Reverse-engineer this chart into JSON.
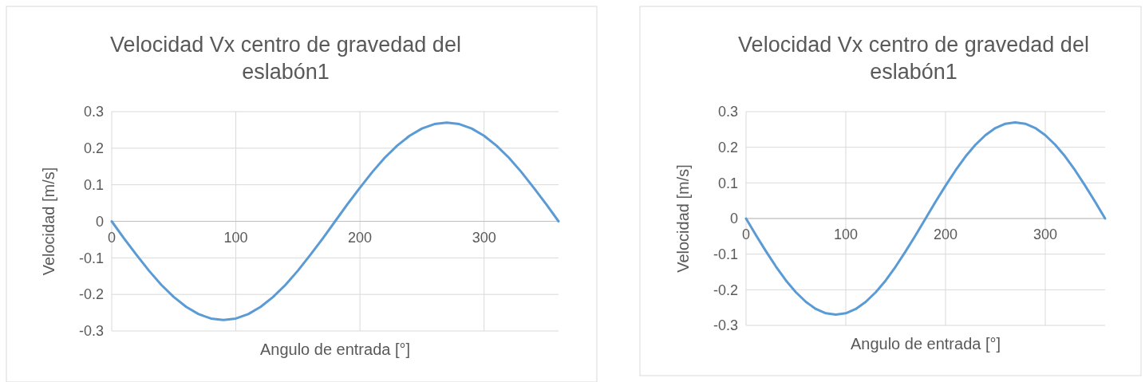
{
  "chart_data": [
    {
      "type": "line",
      "title": "Velocidad Vx centro de gravedad del eslabón1",
      "xlabel": "Angulo de entrada [°]",
      "ylabel": "Velocidad [m/s]",
      "x": [
        0,
        10,
        20,
        30,
        40,
        50,
        60,
        70,
        80,
        90,
        100,
        110,
        120,
        130,
        140,
        150,
        160,
        170,
        180,
        190,
        200,
        210,
        220,
        230,
        240,
        250,
        260,
        270,
        280,
        290,
        300,
        310,
        320,
        330,
        340,
        350,
        360
      ],
      "series": [
        {
          "color": "#5b9bd5",
          "values": [
            0,
            -0.047,
            -0.092,
            -0.135,
            -0.174,
            -0.207,
            -0.234,
            -0.254,
            -0.266,
            -0.27,
            -0.266,
            -0.254,
            -0.234,
            -0.207,
            -0.174,
            -0.135,
            -0.092,
            -0.047,
            0,
            0.047,
            0.092,
            0.135,
            0.174,
            0.207,
            0.234,
            0.254,
            0.266,
            0.27,
            0.266,
            0.254,
            0.234,
            0.207,
            0.174,
            0.135,
            0.092,
            0.047,
            0
          ]
        }
      ],
      "xlim": [
        0,
        360
      ],
      "xticks": [
        0,
        100,
        200,
        300
      ],
      "ylim": [
        -0.3,
        0.3
      ],
      "yticks": [
        -0.3,
        -0.2,
        -0.1,
        0,
        0.1,
        0.2,
        0.3
      ],
      "grid": true,
      "marker": "none",
      "line_style": "solid"
    },
    {
      "type": "line",
      "title": "Velocidad Vx centro de gravedad del eslabón1",
      "xlabel": "Angulo de entrada [°]",
      "ylabel": "Velocidad [m/s]",
      "x": [
        0,
        10,
        20,
        30,
        40,
        50,
        60,
        70,
        80,
        90,
        100,
        110,
        120,
        130,
        140,
        150,
        160,
        170,
        180,
        190,
        200,
        210,
        220,
        230,
        240,
        250,
        260,
        270,
        280,
        290,
        300,
        310,
        320,
        330,
        340,
        350,
        360
      ],
      "series": [
        {
          "color": "#5b9bd5",
          "values": [
            0,
            -0.047,
            -0.092,
            -0.135,
            -0.174,
            -0.207,
            -0.234,
            -0.254,
            -0.266,
            -0.27,
            -0.266,
            -0.254,
            -0.234,
            -0.207,
            -0.174,
            -0.135,
            -0.092,
            -0.047,
            0,
            0.047,
            0.092,
            0.135,
            0.174,
            0.207,
            0.234,
            0.254,
            0.266,
            0.27,
            0.266,
            0.254,
            0.234,
            0.207,
            0.174,
            0.135,
            0.092,
            0.047,
            0
          ]
        }
      ],
      "xlim": [
        0,
        360
      ],
      "xticks": [
        0,
        100,
        200,
        300
      ],
      "ylim": [
        -0.3,
        0.3
      ],
      "yticks": [
        -0.3,
        -0.2,
        -0.1,
        0,
        0.1,
        0.2,
        0.3
      ],
      "grid": true,
      "marker": "none",
      "line_style": "solid"
    }
  ]
}
